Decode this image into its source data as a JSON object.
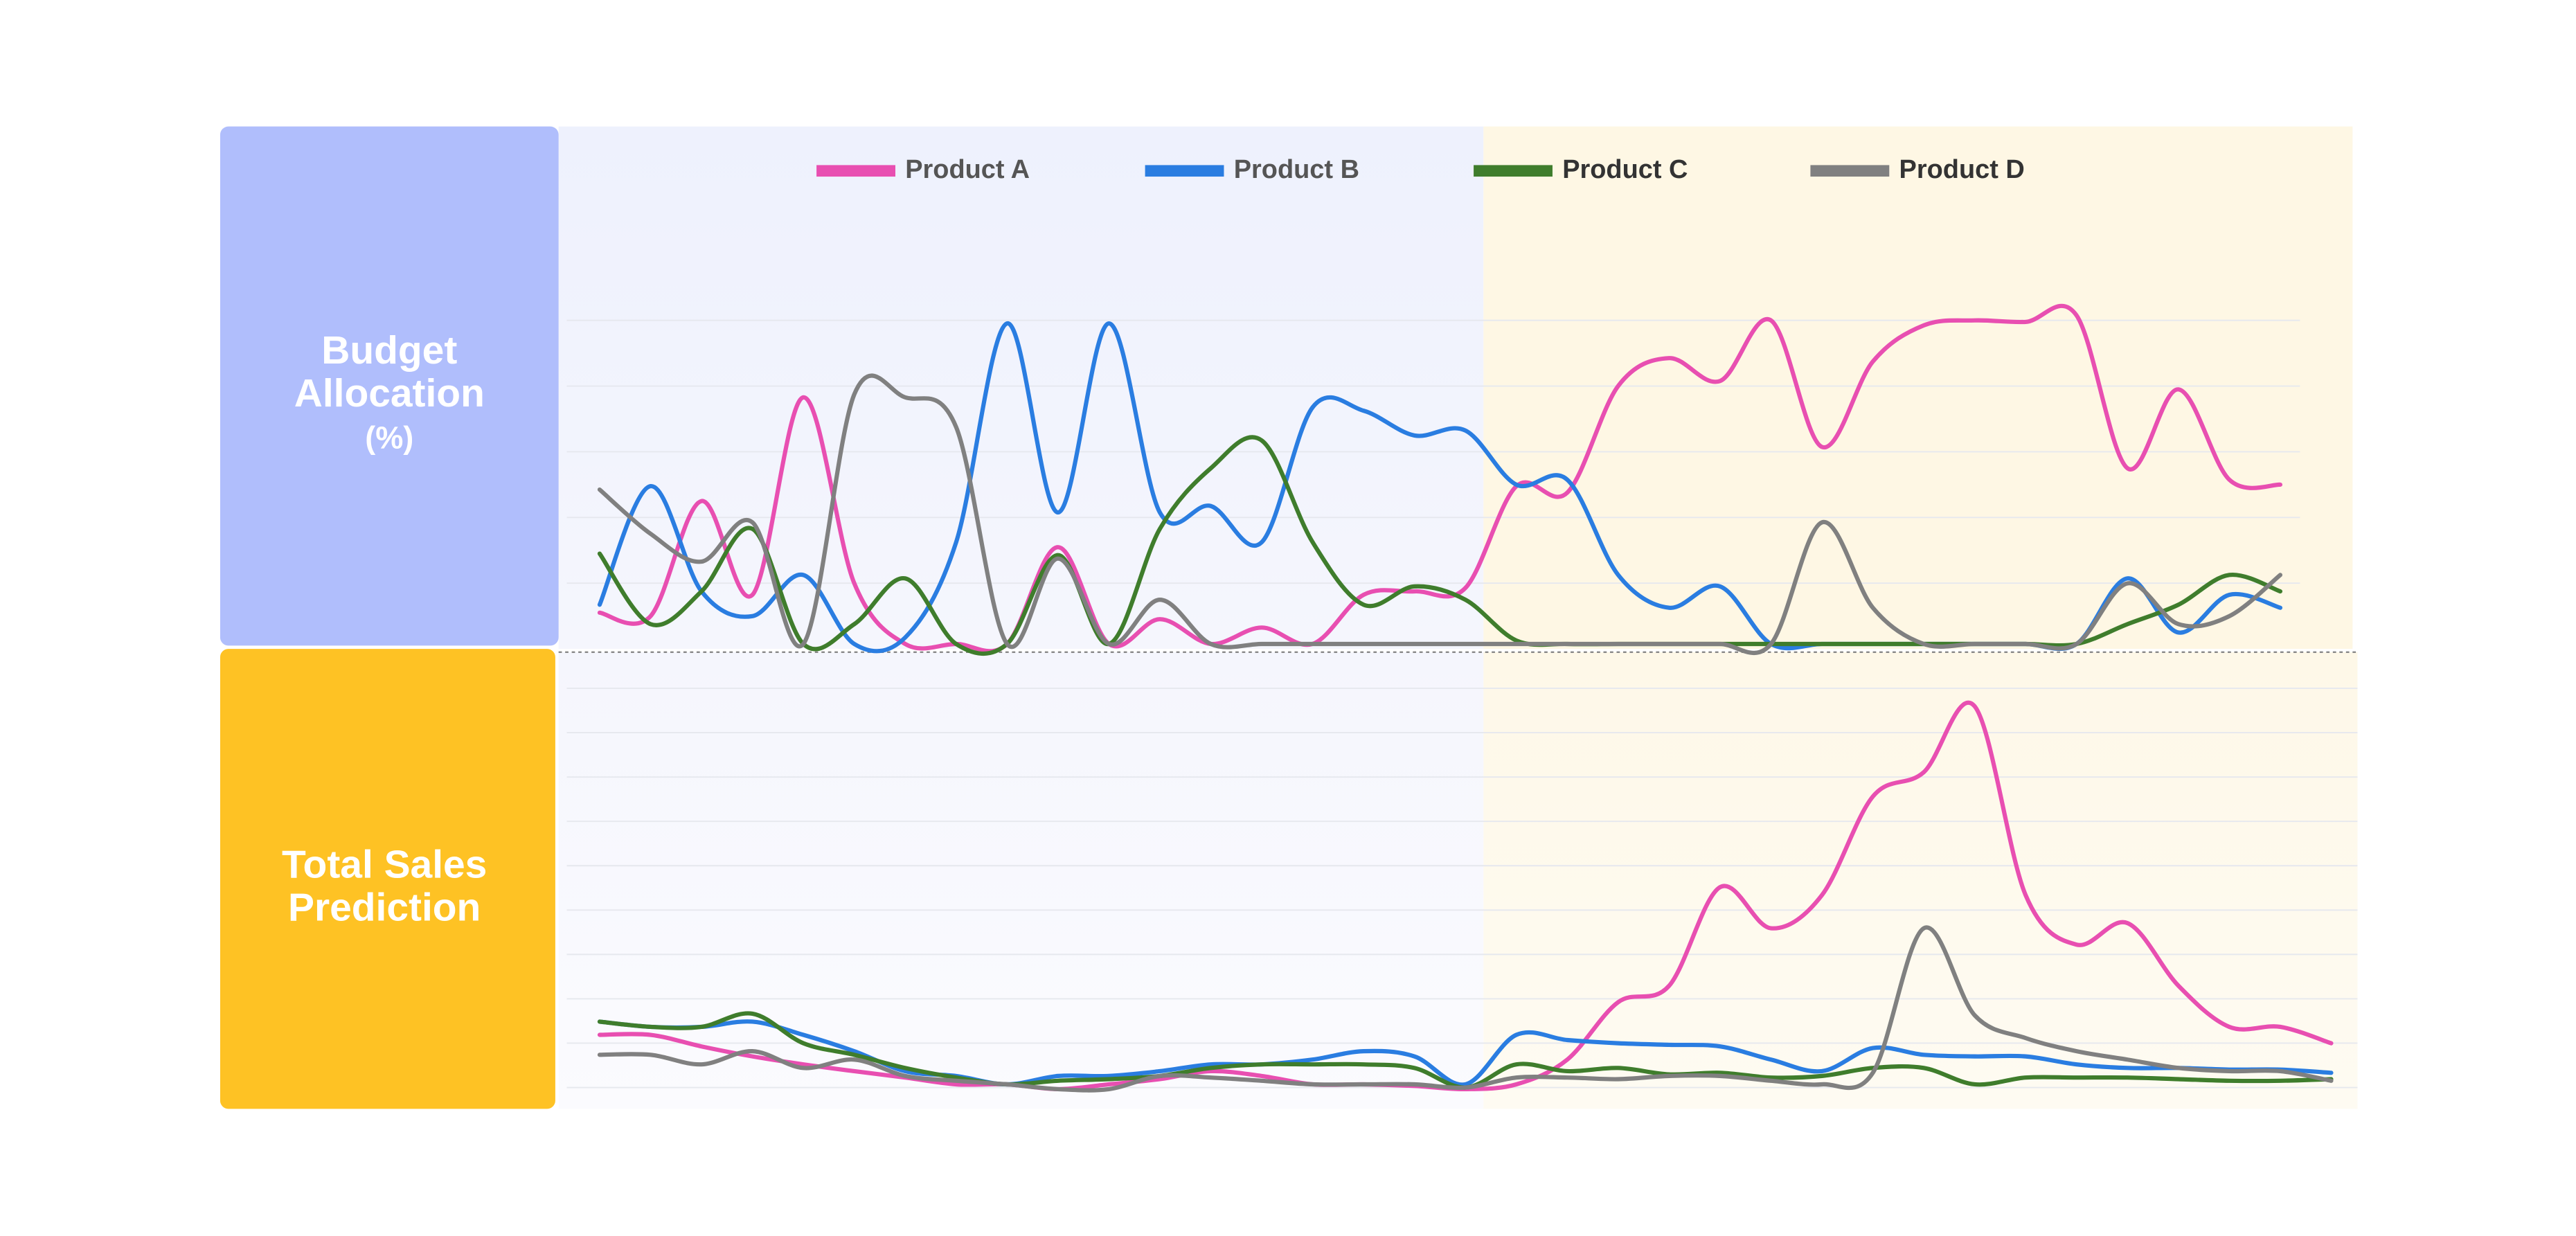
{
  "chart_data": [
    {
      "type": "line",
      "title": [
        "Budget",
        "Allocation",
        "(%)"
      ],
      "ylim": [
        0,
        100
      ],
      "categories": [
        null,
        null,
        null,
        null,
        null,
        null,
        null,
        null,
        null,
        null,
        null,
        null,
        null,
        null,
        null,
        null,
        null,
        null,
        null,
        null,
        null,
        null,
        null,
        null,
        null,
        null,
        null,
        null,
        null,
        null,
        null,
        null,
        null,
        null
      ],
      "series": [
        {
          "name": "Product A",
          "color": "#e84fb1",
          "values": [
            8.2,
            7.3,
            37.5,
            12.9,
            64.7,
            15.9,
            0,
            0,
            0,
            25.4,
            0,
            6.5,
            0,
            4.3,
            0,
            12.9,
            13.8,
            14.7,
            41.4,
            39.7,
            67.7,
            75,
            69,
            84.9,
            51.7,
            74.1,
            83.6,
            84.9,
            84.5,
            86.2,
            46.1,
            66.8,
            43.1,
            41.8
          ]
        },
        {
          "name": "Product B",
          "color": "#2a7de1",
          "values": [
            10.3,
            41.4,
            13.8,
            7.3,
            18.1,
            0,
            1.7,
            26.7,
            84.1,
            34.5,
            84.1,
            34.5,
            36.2,
            26.7,
            62.1,
            61.2,
            54.7,
            56,
            41.8,
            43.1,
            18.1,
            9.5,
            15.1,
            0,
            0,
            0,
            0,
            0,
            0,
            0,
            17.2,
            3,
            12.9,
            9.5
          ]
        },
        {
          "name": "Product C",
          "color": "#3f7d2c",
          "values": [
            23.7,
            5.2,
            13.8,
            30.2,
            0,
            5.2,
            17.2,
            0,
            0,
            23.3,
            0,
            30.2,
            46.1,
            53.4,
            26.7,
            10.3,
            15.1,
            11.6,
            0.9,
            0,
            0,
            0,
            0,
            0,
            0,
            0,
            0,
            0,
            0,
            0,
            5.2,
            10.3,
            18.1,
            13.8
          ]
        },
        {
          "name": "Product D",
          "color": "#808080",
          "values": [
            40.5,
            28.9,
            21.6,
            31.9,
            0,
            65.5,
            64.7,
            56.9,
            0,
            22.4,
            0,
            11.6,
            0,
            0,
            0,
            0,
            0,
            0,
            0,
            0,
            0,
            0,
            0,
            0,
            31.9,
            9.5,
            0,
            0,
            0,
            0,
            15.9,
            5.2,
            7.3,
            18.1
          ]
        }
      ]
    },
    {
      "type": "line",
      "title": [
        "Total Sales",
        "Prediction"
      ],
      "ylim": [
        0,
        100
      ],
      "categories": [
        null,
        null,
        null,
        null,
        null,
        null,
        null,
        null,
        null,
        null,
        null,
        null,
        null,
        null,
        null,
        null,
        null,
        null,
        null,
        null,
        null,
        null,
        null,
        null,
        null,
        null,
        null,
        null,
        null,
        null,
        null,
        null,
        null,
        null,
        null
      ],
      "series": [
        {
          "color": "#e84fb1",
          "values": [
            13.6,
            13.6,
            10.7,
            8.2,
            6.2,
            4.5,
            2.9,
            1.2,
            1.2,
            0,
            1.2,
            2.5,
            4.5,
            3.3,
            1.2,
            1.2,
            0.8,
            0,
            1.2,
            7.4,
            21.8,
            25.9,
            50.6,
            40.3,
            48.6,
            73.3,
            79.4,
            95.9,
            48.6,
            36.2,
            41.6,
            25.9,
            15.6,
            15.6,
            11.5
          ]
        },
        {
          "color": "#2a7de1",
          "values": [
            16.9,
            15.6,
            15.6,
            16.9,
            13.6,
            9.5,
            4.5,
            3.3,
            1.2,
            3.3,
            3.3,
            4.5,
            6.2,
            6.2,
            7.4,
            9.5,
            8.2,
            1.2,
            13.6,
            12.3,
            11.5,
            11.1,
            10.7,
            7.4,
            4.5,
            10.3,
            8.6,
            8.2,
            8.2,
            6.2,
            5.3,
            5.3,
            4.9,
            4.9,
            4.1
          ]
        },
        {
          "color": "#3f7d2c",
          "values": [
            16.9,
            15.6,
            15.6,
            18.9,
            11.5,
            8.6,
            5.3,
            2.9,
            1.2,
            2.1,
            2.5,
            3.3,
            5.3,
            6.2,
            6.2,
            6.2,
            5.3,
            0.4,
            6.2,
            4.5,
            5.3,
            3.7,
            4.1,
            2.9,
            3.3,
            5.3,
            5.3,
            1.2,
            2.9,
            2.9,
            2.9,
            2.5,
            2.1,
            2.1,
            2.5
          ]
        },
        {
          "color": "#808080",
          "values": [
            8.6,
            8.6,
            6.2,
            9.5,
            5.3,
            7.4,
            3.3,
            2.1,
            1.2,
            0,
            0,
            3.3,
            2.9,
            2.1,
            1.2,
            1.2,
            1.2,
            0.4,
            2.9,
            2.9,
            2.5,
            3.3,
            3.3,
            2.1,
            1.2,
            4.1,
            40.3,
            18.5,
            12.8,
            9.5,
            7.4,
            5.3,
            4.5,
            4.5,
            2.1
          ]
        }
      ]
    }
  ]
}
